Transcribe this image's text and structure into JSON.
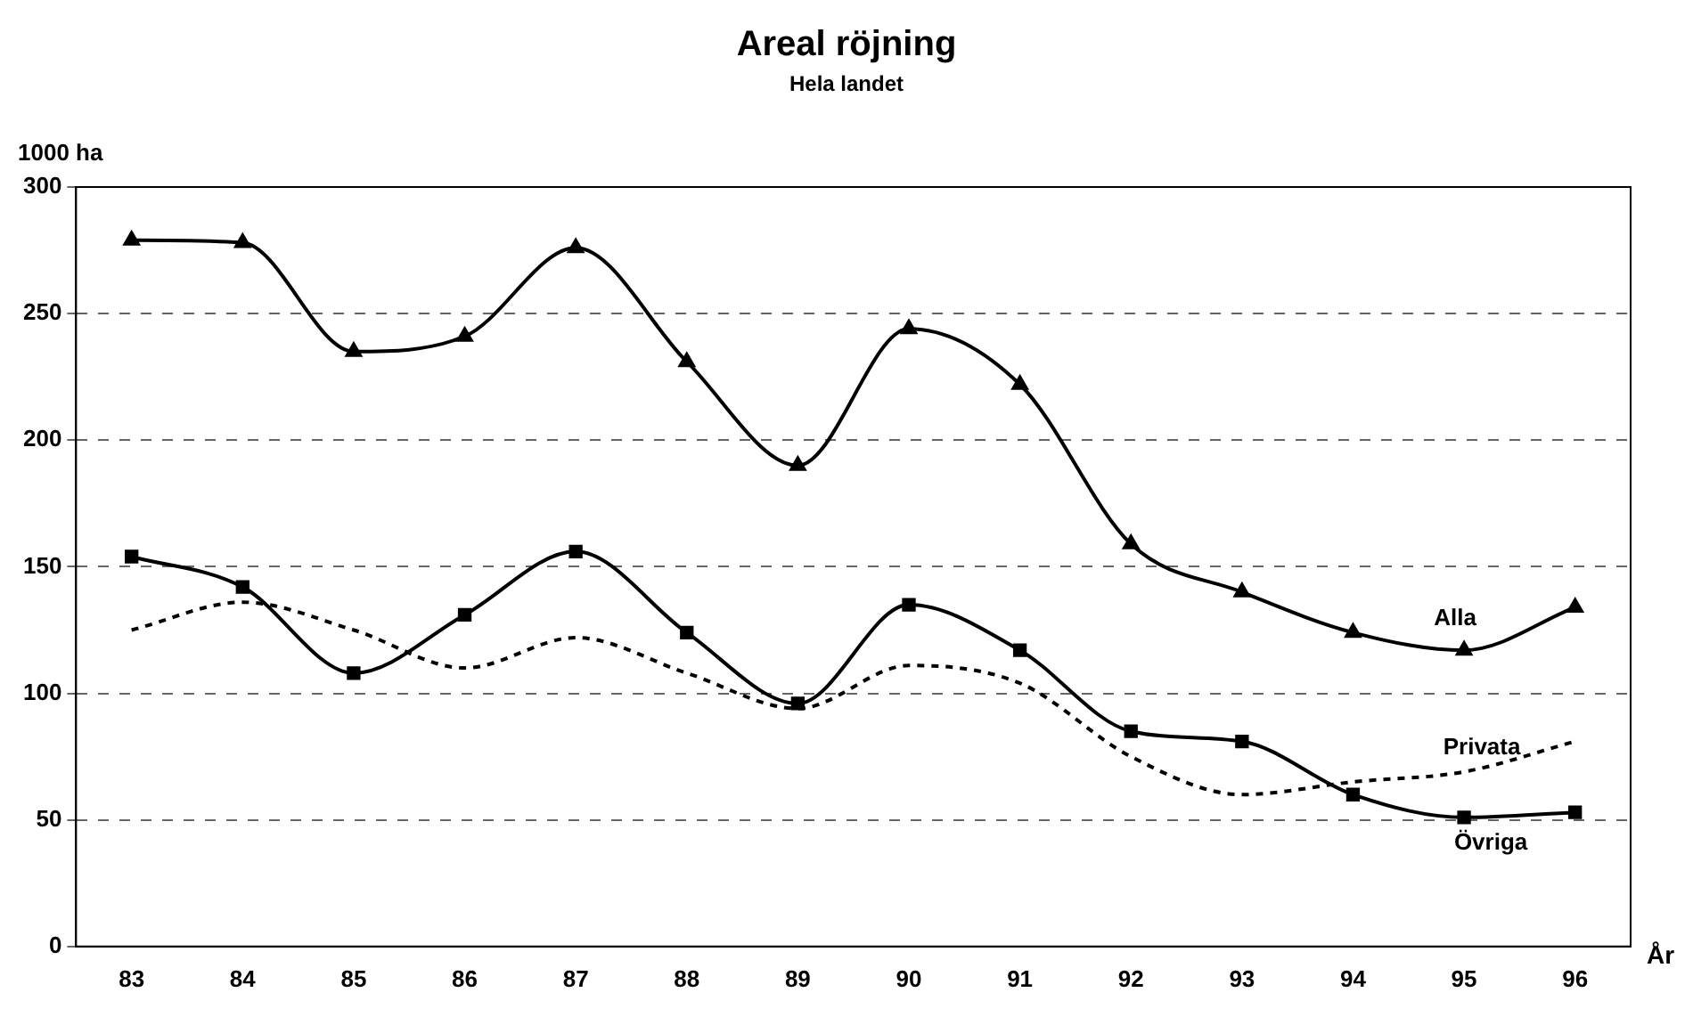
{
  "chart_data": {
    "type": "line",
    "title": "Areal röjning",
    "subtitle": "Hela landet",
    "ylabel": "1000 ha",
    "xlabel": "År",
    "categories": [
      "83",
      "84",
      "85",
      "86",
      "87",
      "88",
      "89",
      "90",
      "91",
      "92",
      "93",
      "94",
      "95",
      "96"
    ],
    "series": [
      {
        "name": "Alla",
        "color": "#000000",
        "marker": "triangle",
        "line_style": "solid",
        "values": [
          279,
          278,
          235,
          241,
          276,
          231,
          190,
          244,
          222,
          159,
          140,
          124,
          117,
          134
        ]
      },
      {
        "name": "Privata",
        "color": "#000000",
        "marker": "none",
        "line_style": "dotted",
        "values": [
          125,
          136,
          125,
          110,
          122,
          108,
          94,
          111,
          104,
          75,
          60,
          65,
          69,
          81
        ]
      },
      {
        "name": "Övriga",
        "color": "#000000",
        "marker": "square",
        "line_style": "solid",
        "values": [
          154,
          142,
          108,
          131,
          156,
          124,
          96,
          135,
          117,
          85,
          81,
          60,
          51,
          53
        ]
      }
    ],
    "ylim": [
      0,
      300
    ],
    "yticks": [
      0,
      50,
      100,
      150,
      200,
      250,
      300
    ],
    "grid": "y",
    "legend": false
  }
}
